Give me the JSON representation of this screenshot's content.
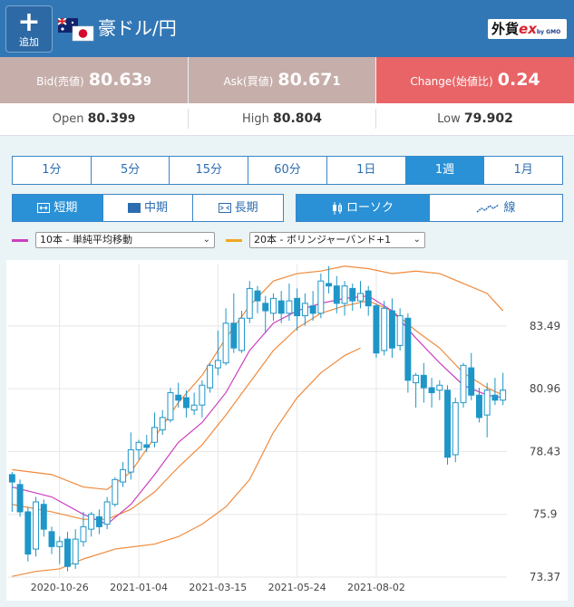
{
  "header": {
    "add_label": "追加",
    "add_icon": "plus-icon",
    "pair": "豪ドル/円",
    "logo_main": "外貨",
    "logo_ex": "ex",
    "logo_sub": "by GMO"
  },
  "quote": {
    "bid_label": "Bid(売値)",
    "bid_main": "80.63",
    "bid_pip": "9",
    "ask_label": "Ask(買値)",
    "ask_main": "80.67",
    "ask_pip": "1",
    "change_label": "Change(始値比)",
    "change_value": "0.24"
  },
  "ohl": {
    "open_label": "Open",
    "open_main": "80.39",
    "open_pip": "9",
    "high_label": "High",
    "high_value": "80.804",
    "low_label": "Low",
    "low_value": "79.902"
  },
  "periods": [
    "1分",
    "5分",
    "15分",
    "60分",
    "1日",
    "1週",
    "1月"
  ],
  "active_period": 5,
  "terms": [
    "短期",
    "中期",
    "長期"
  ],
  "chart_types": [
    "ローソク",
    "線"
  ],
  "indicators": [
    {
      "label": "10本 - 単純平均移動",
      "color": "#cc3fbf"
    },
    {
      "label": "20本 - ボリンジャーバンド+1",
      "color": "#f0a81e"
    }
  ],
  "colors": {
    "up": "#ffffff",
    "down": "#1e96c8",
    "ma": "#cc3fbf",
    "bb": "#f08a3c"
  },
  "chart_data": {
    "type": "candlestick",
    "y_ticks": [
      "83.49",
      "80.96",
      "78.43",
      "75.9",
      "73.37"
    ],
    "x_ticks": [
      "2020-10-26",
      "2021-01-04",
      "2021-03-15",
      "2021-05-24",
      "2021-08-02"
    ],
    "ylim": [
      73.37,
      86.0
    ],
    "candles": [
      [
        77.5,
        77.2,
        77.6,
        76.0
      ],
      [
        77.1,
        76.0,
        77.3,
        75.8
      ],
      [
        76.0,
        74.3,
        76.2,
        74.0
      ],
      [
        74.5,
        76.4,
        76.6,
        74.2
      ],
      [
        76.3,
        75.3,
        76.5,
        75.0
      ],
      [
        75.2,
        74.6,
        75.4,
        74.3
      ],
      [
        74.6,
        74.8,
        75.0,
        73.9
      ],
      [
        74.9,
        73.8,
        75.2,
        73.6
      ],
      [
        73.9,
        74.9,
        75.3,
        73.7
      ],
      [
        74.8,
        75.4,
        76.0,
        74.6
      ],
      [
        75.3,
        75.9,
        76.0,
        75.0
      ],
      [
        75.8,
        75.4,
        76.1,
        75.1
      ],
      [
        75.5,
        76.4,
        76.6,
        75.3
      ],
      [
        76.3,
        77.3,
        77.4,
        76.2
      ],
      [
        77.2,
        77.7,
        78.0,
        77.0
      ],
      [
        77.6,
        78.5,
        79.2,
        77.3
      ],
      [
        78.5,
        78.8,
        78.9,
        78.1
      ],
      [
        78.7,
        78.6,
        79.1,
        78.4
      ],
      [
        78.8,
        79.4,
        80.0,
        78.6
      ],
      [
        79.3,
        79.8,
        80.1,
        79.1
      ],
      [
        79.7,
        80.8,
        81.0,
        79.6
      ],
      [
        80.7,
        80.5,
        81.2,
        80.2
      ],
      [
        80.6,
        80.2,
        80.9,
        79.8
      ],
      [
        80.1,
        80.3,
        80.8,
        79.9
      ],
      [
        80.3,
        81.1,
        81.3,
        79.8
      ],
      [
        81.0,
        81.9,
        82.0,
        80.8
      ],
      [
        81.8,
        82.1,
        83.3,
        81.5
      ],
      [
        82.0,
        83.6,
        84.2,
        81.9
      ],
      [
        83.6,
        82.6,
        84.8,
        82.4
      ],
      [
        82.5,
        83.8,
        84.1,
        82.4
      ],
      [
        83.8,
        85.0,
        85.3,
        83.6
      ],
      [
        84.9,
        84.5,
        85.1,
        84.0
      ],
      [
        84.4,
        84.1,
        84.7,
        83.2
      ],
      [
        84.0,
        84.6,
        84.8,
        83.7
      ],
      [
        84.5,
        84.0,
        84.9,
        83.6
      ],
      [
        84.0,
        84.5,
        85.2,
        83.7
      ],
      [
        84.6,
        83.9,
        85.0,
        83.3
      ],
      [
        83.9,
        84.4,
        84.8,
        83.5
      ],
      [
        84.3,
        84.0,
        84.9,
        83.7
      ],
      [
        84.0,
        85.3,
        85.6,
        83.8
      ],
      [
        85.2,
        85.1,
        85.9,
        84.8
      ],
      [
        85.1,
        84.4,
        85.5,
        84.0
      ],
      [
        84.4,
        85.1,
        85.3,
        83.9
      ],
      [
        85.0,
        84.5,
        85.2,
        84.1
      ],
      [
        84.5,
        84.8,
        85.3,
        84.2
      ],
      [
        84.9,
        84.3,
        85.1,
        83.9
      ],
      [
        84.3,
        82.4,
        84.4,
        82.2
      ],
      [
        82.5,
        84.2,
        84.5,
        82.3
      ],
      [
        84.1,
        82.6,
        84.6,
        82.2
      ],
      [
        82.7,
        83.9,
        84.2,
        82.5
      ],
      [
        83.8,
        81.3,
        84.0,
        80.8
      ],
      [
        81.2,
        81.5,
        81.6,
        80.2
      ],
      [
        81.5,
        81.0,
        82.0,
        80.4
      ],
      [
        81.0,
        80.8,
        81.4,
        80.2
      ],
      [
        80.9,
        81.1,
        81.3,
        80.5
      ],
      [
        80.9,
        78.2,
        81.1,
        77.9
      ],
      [
        78.3,
        80.4,
        80.6,
        78.0
      ],
      [
        80.4,
        81.9,
        82.0,
        80.2
      ],
      [
        81.8,
        80.7,
        82.4,
        80.5
      ],
      [
        80.7,
        79.8,
        81.0,
        79.6
      ],
      [
        79.9,
        80.9,
        81.2,
        79.0
      ],
      [
        80.7,
        80.5,
        81.4,
        80.3
      ],
      [
        80.5,
        80.9,
        81.6,
        80.3
      ]
    ],
    "ma10": [
      [
        0,
        77.0
      ],
      [
        5,
        76.6
      ],
      [
        9,
        75.9
      ],
      [
        12,
        75.5
      ],
      [
        15,
        76.3
      ],
      [
        18,
        77.5
      ],
      [
        21,
        78.8
      ],
      [
        24,
        79.6
      ],
      [
        27,
        80.8
      ],
      [
        30,
        82.5
      ],
      [
        33,
        83.6
      ],
      [
        36,
        84.1
      ],
      [
        39,
        84.4
      ],
      [
        42,
        84.6
      ],
      [
        45,
        84.7
      ],
      [
        48,
        84.1
      ],
      [
        51,
        83.0
      ],
      [
        54,
        82.0
      ],
      [
        57,
        81.1
      ],
      [
        60,
        80.7
      ],
      [
        62,
        80.6
      ]
    ],
    "bb_upper": [
      [
        0,
        77.7
      ],
      [
        5,
        77.5
      ],
      [
        9,
        77.0
      ],
      [
        12,
        76.9
      ],
      [
        15,
        77.6
      ],
      [
        18,
        79.0
      ],
      [
        21,
        80.4
      ],
      [
        24,
        81.5
      ],
      [
        27,
        83.0
      ],
      [
        30,
        84.3
      ],
      [
        33,
        85.3
      ],
      [
        36,
        85.6
      ],
      [
        39,
        85.7
      ],
      [
        42,
        85.9
      ],
      [
        45,
        85.8
      ],
      [
        48,
        85.6
      ],
      [
        51,
        85.7
      ],
      [
        54,
        85.6
      ],
      [
        57,
        85.2
      ],
      [
        60,
        84.8
      ],
      [
        62,
        84.1
      ]
    ],
    "bb_mid": [
      [
        0,
        76.3
      ],
      [
        5,
        76.0
      ],
      [
        9,
        75.7
      ],
      [
        12,
        75.7
      ],
      [
        15,
        76.1
      ],
      [
        18,
        76.8
      ],
      [
        21,
        77.8
      ],
      [
        24,
        78.7
      ],
      [
        27,
        79.9
      ],
      [
        30,
        81.2
      ],
      [
        33,
        82.5
      ],
      [
        36,
        83.4
      ],
      [
        39,
        84.0
      ],
      [
        42,
        84.3
      ],
      [
        45,
        84.5
      ],
      [
        48,
        84.1
      ],
      [
        51,
        83.3
      ],
      [
        54,
        82.6
      ],
      [
        57,
        81.6
      ],
      [
        60,
        81.0
      ],
      [
        62,
        80.7
      ]
    ],
    "bb_lower": [
      [
        0,
        73.4
      ],
      [
        3,
        73.6
      ],
      [
        6,
        73.7
      ],
      [
        9,
        74.1
      ],
      [
        13,
        74.5
      ],
      [
        18,
        74.7
      ],
      [
        21,
        75.0
      ],
      [
        24,
        75.5
      ],
      [
        27,
        76.2
      ],
      [
        30,
        77.3
      ],
      [
        33,
        79.2
      ],
      [
        36,
        80.6
      ],
      [
        39,
        81.6
      ],
      [
        42,
        82.3
      ],
      [
        44,
        82.6
      ]
    ]
  }
}
